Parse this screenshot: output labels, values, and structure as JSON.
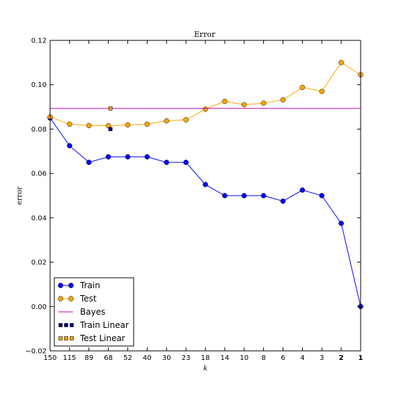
{
  "chart_data": {
    "type": "line",
    "title": "Error",
    "xlabel": "k",
    "ylabel": "error",
    "x_tick_labels": [
      "150",
      "115",
      "89",
      "68",
      "52",
      "40",
      "30",
      "23",
      "18",
      "14",
      "10",
      "8",
      "6",
      "4",
      "3",
      "2",
      "1"
    ],
    "x_bold_ticks": [
      "2",
      "1"
    ],
    "ylim": [
      -0.02,
      0.12
    ],
    "y_ticks": [
      -0.02,
      0.0,
      0.02,
      0.04,
      0.06,
      0.08,
      0.1,
      0.12
    ],
    "y_tick_labels": [
      "−0.02",
      "0.00",
      "0.02",
      "0.04",
      "0.06",
      "0.08",
      "0.10",
      "0.12"
    ],
    "grid": false,
    "legend_position": "bottom-left",
    "series": [
      {
        "name": "Train",
        "color": "#0000ff",
        "marker": "circle",
        "x": [
          "150",
          "115",
          "89",
          "68",
          "52",
          "40",
          "30",
          "23",
          "18",
          "14",
          "10",
          "8",
          "6",
          "4",
          "3",
          "2",
          "1"
        ],
        "values": [
          0.085,
          0.0725,
          0.065,
          0.0675,
          0.0675,
          0.0675,
          0.065,
          0.065,
          0.055,
          0.05,
          0.05,
          0.05,
          0.0475,
          0.0525,
          0.05,
          0.0375,
          0.0
        ]
      },
      {
        "name": "Test",
        "color": "#ffa500",
        "marker": "circle",
        "x": [
          "150",
          "115",
          "89",
          "68",
          "52",
          "40",
          "30",
          "23",
          "18",
          "14",
          "10",
          "8",
          "6",
          "4",
          "3",
          "2",
          "1"
        ],
        "values": [
          0.0855,
          0.0822,
          0.0816,
          0.0815,
          0.0819,
          0.0822,
          0.0837,
          0.0842,
          0.089,
          0.0925,
          0.091,
          0.0917,
          0.0932,
          0.0988,
          0.097,
          0.11,
          0.1045
        ]
      },
      {
        "name": "Bayes",
        "color": "#bf00bf",
        "type": "hline",
        "value": 0.0893
      },
      {
        "name": "Train Linear",
        "color": "#00008b",
        "marker": "square",
        "x_position": 68,
        "value": 0.08
      },
      {
        "name": "Test Linear",
        "color": "#ffa500",
        "marker": "square",
        "x_position": 68,
        "value": 0.0893
      }
    ]
  }
}
